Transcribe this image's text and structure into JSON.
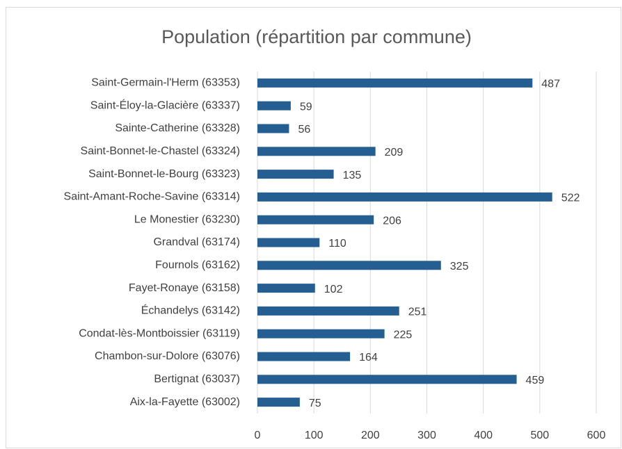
{
  "chart_data": {
    "type": "bar",
    "orientation": "horizontal",
    "title": "Population (répartition par commune)",
    "categories": [
      "Saint-Germain-l'Herm (63353)",
      "Saint-Éloy-la-Glacière (63337)",
      "Sainte-Catherine (63328)",
      "Saint-Bonnet-le-Chastel (63324)",
      "Saint-Bonnet-le-Bourg (63323)",
      "Saint-Amant-Roche-Savine (63314)",
      "Le Monestier (63230)",
      "Grandval (63174)",
      "Fournols (63162)",
      "Fayet-Ronaye (63158)",
      "Échandelys (63142)",
      "Condat-lès-Montboissier (63119)",
      "Chambon-sur-Dolore (63076)",
      "Bertignat (63037)",
      "Aix-la-Fayette (63002)"
    ],
    "values": [
      487,
      59,
      56,
      209,
      135,
      522,
      206,
      110,
      325,
      102,
      251,
      225,
      164,
      459,
      75
    ],
    "color": "#255e91",
    "xlim": [
      0,
      600
    ],
    "xticks": [
      0,
      100,
      200,
      300,
      400,
      500,
      600
    ],
    "grid": true
  }
}
